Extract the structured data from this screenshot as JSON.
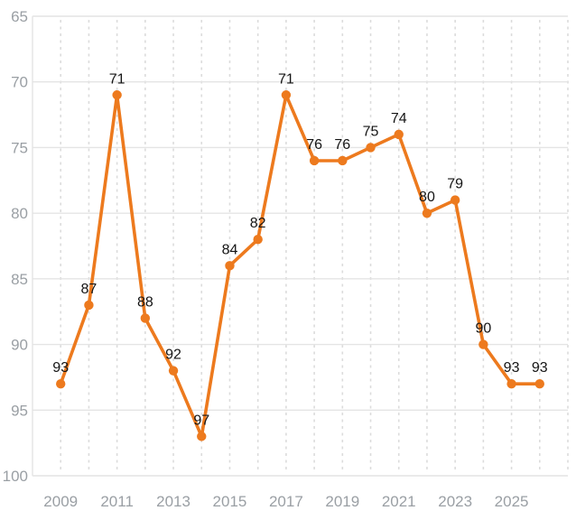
{
  "chart_data": {
    "type": "line",
    "x": [
      2009,
      2010,
      2011,
      2012,
      2013,
      2014,
      2015,
      2016,
      2017,
      2018,
      2019,
      2020,
      2021,
      2022,
      2023,
      2024,
      2025,
      2026
    ],
    "values": [
      93,
      87,
      71,
      88,
      92,
      97,
      84,
      82,
      71,
      76,
      76,
      75,
      74,
      80,
      79,
      90,
      93,
      93
    ],
    "point_labels": [
      "93",
      "87",
      "71",
      "88",
      "92",
      "97",
      "84",
      "82",
      "71",
      "76",
      "76",
      "75",
      "74",
      "80",
      "79",
      "90",
      "93",
      "93"
    ],
    "title": "",
    "xlabel": "",
    "ylabel": "",
    "y_ticks": [
      65,
      70,
      75,
      80,
      85,
      90,
      95,
      100
    ],
    "y_tick_labels": [
      "65",
      "70",
      "75",
      "80",
      "85",
      "90",
      "95",
      "100"
    ],
    "x_tick_years": [
      2009,
      2011,
      2013,
      2015,
      2017,
      2019,
      2021,
      2023,
      2025
    ],
    "x_tick_labels": [
      "2009",
      "2011",
      "2013",
      "2015",
      "2017",
      "2019",
      "2021",
      "2023",
      "2025"
    ],
    "ylim": [
      65,
      100
    ],
    "xlim": [
      2008,
      2027
    ],
    "y_axis_inverted": true,
    "grid": {
      "horizontal": "solid",
      "vertical": "dashed"
    },
    "legend": "none",
    "colors": {
      "line": "#ED7A1E",
      "point": "#ED7A1E",
      "point_label": "#141414",
      "axis_label": "#9A9FA4",
      "grid_solid": "#E4E4E4",
      "grid_dashed": "#DCDCDC",
      "axis_spine": "#E4E4E4",
      "background": "#FFFFFF"
    }
  }
}
